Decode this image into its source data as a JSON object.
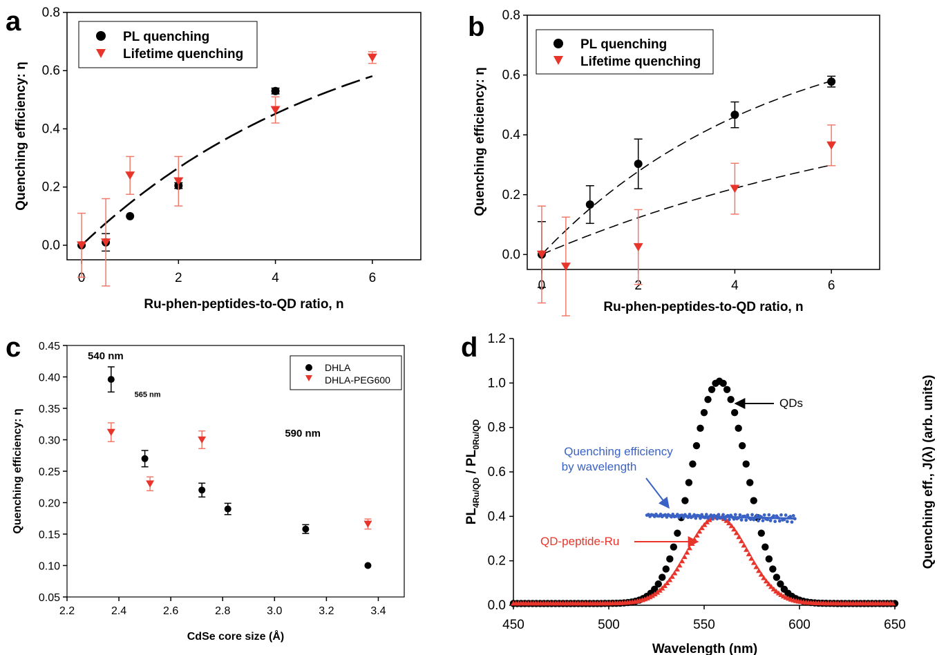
{
  "colors": {
    "black": "#000000",
    "red": "#e8352b",
    "errred": "#f07a6a",
    "blue": "#3a62c4"
  },
  "chart_data": [
    {
      "panel": "a",
      "type": "scatter",
      "xlabel": "Ru-phen-peptides-to-QD ratio, n",
      "ylabel": "Quenching efficiency: η",
      "xlim": [
        -0.3,
        7.0
      ],
      "ylim": [
        -0.05,
        0.8
      ],
      "xticks": [
        "0",
        "2",
        "4",
        "6"
      ],
      "yticks": [
        "0.0",
        "0.2",
        "0.4",
        "0.6",
        "0.8"
      ],
      "legend": [
        "PL quenching",
        "Lifetime quenching"
      ],
      "legend_position": "top-left",
      "series": [
        {
          "name": "PL quenching",
          "marker": "circle",
          "color": "#000000",
          "x": [
            0,
            0.5,
            1,
            2,
            4
          ],
          "y": [
            0.0,
            0.01,
            0.1,
            0.205,
            0.53
          ],
          "err": [
            0.0,
            0.03,
            0.0,
            0.01,
            0.01
          ]
        },
        {
          "name": "Lifetime quenching",
          "marker": "triangle-down",
          "color": "#e8352b",
          "x": [
            0,
            0.5,
            1,
            2,
            4,
            6
          ],
          "y": [
            0.0,
            0.01,
            0.24,
            0.22,
            0.465,
            0.645
          ],
          "err": [
            0.11,
            0.15,
            0.065,
            0.085,
            0.045,
            0.02
          ]
        }
      ],
      "fit": {
        "a": 0.88,
        "b": 0.18,
        "x0": 0,
        "x1": 6,
        "dash": "long"
      }
    },
    {
      "panel": "b",
      "type": "scatter",
      "xlabel": "Ru-phen-peptides-to-QD ratio, n",
      "ylabel": "Quenching efficiency: η",
      "xlim": [
        -0.3,
        7.0
      ],
      "ylim": [
        -0.05,
        0.8
      ],
      "xticks": [
        "0",
        "2",
        "4",
        "6"
      ],
      "yticks": [
        "0.0",
        "0.2",
        "0.4",
        "0.6",
        "0.8"
      ],
      "legend": [
        "PL quenching",
        "Lifetime quenching"
      ],
      "legend_position": "top-left",
      "series": [
        {
          "name": "PL quenching",
          "marker": "circle",
          "color": "#000000",
          "x": [
            0,
            1,
            2,
            4,
            6
          ],
          "y": [
            0.0,
            0.167,
            0.303,
            0.467,
            0.578
          ],
          "err": [
            0.11,
            0.063,
            0.083,
            0.043,
            0.018
          ]
        },
        {
          "name": "Lifetime quenching",
          "marker": "triangle-down",
          "color": "#e8352b",
          "x": [
            0,
            0.5,
            2,
            4,
            6
          ],
          "y": [
            0.0,
            -0.04,
            0.025,
            0.22,
            0.365
          ],
          "err": [
            0.162,
            0.165,
            0.125,
            0.085,
            0.068
          ]
        }
      ],
      "fits": [
        {
          "a": 0.81,
          "b": 0.21,
          "x0": 0,
          "x1": 6
        },
        {
          "a": 0.6,
          "b": 0.115,
          "x0": 0,
          "x1": 6
        }
      ]
    },
    {
      "panel": "c",
      "type": "scatter",
      "xlabel": "CdSe core size (Å)",
      "ylabel": "Quenching efficiency: η",
      "xlim": [
        2.2,
        3.5
      ],
      "ylim": [
        0.05,
        0.45
      ],
      "xticks": [
        "2.2",
        "2.4",
        "2.6",
        "2.8",
        "3.0",
        "3.2",
        "3.4"
      ],
      "yticks": [
        "0.05",
        "0.10",
        "0.15",
        "0.20",
        "0.25",
        "0.30",
        "0.35",
        "0.40",
        "0.45"
      ],
      "legend": [
        "DHLA",
        "DHLA-PEG600"
      ],
      "legend_position": "top-right",
      "annotations": [
        {
          "text": "540 nm",
          "x": 2.28,
          "y": 0.428,
          "size": 15
        },
        {
          "text": "565 nm",
          "x": 2.46,
          "y": 0.368,
          "size": 11
        },
        {
          "text": "590 nm",
          "x": 3.04,
          "y": 0.305,
          "size": 15
        }
      ],
      "series": [
        {
          "name": "DHLA",
          "marker": "circle",
          "color": "#000000",
          "x": [
            2.37,
            2.5,
            2.72,
            2.82,
            3.12,
            3.36
          ],
          "y": [
            0.396,
            0.27,
            0.22,
            0.19,
            0.158,
            0.1
          ],
          "err": [
            0.02,
            0.013,
            0.011,
            0.009,
            0.007,
            0.0
          ]
        },
        {
          "name": "DHLA-PEG600",
          "marker": "triangle-down",
          "color": "#e8352b",
          "x": [
            2.37,
            2.52,
            2.72,
            3.36
          ],
          "y": [
            0.312,
            0.23,
            0.3,
            0.166
          ],
          "err": [
            0.015,
            0.011,
            0.014,
            0.008
          ]
        }
      ]
    },
    {
      "panel": "d",
      "type": "line",
      "xlabel": "Wavelength (nm)",
      "ylabel": "PL4Ru/QD / PL0Ru/QD",
      "ylabel_right": "Quenching eff., J(λ) (arb. units)",
      "xlim": [
        450,
        650
      ],
      "ylim": [
        0,
        1.2
      ],
      "xticks": [
        "450",
        "500",
        "550",
        "600",
        "650"
      ],
      "yticks": [
        "0.0",
        "0.2",
        "0.4",
        "0.6",
        "0.8",
        "1.0",
        "1.2"
      ],
      "series": [
        {
          "name": "QDs",
          "color": "#000000",
          "marker": "circle",
          "peak": 558,
          "amplitude": 1.0,
          "sigma": 14.5,
          "x_range": [
            450,
            650
          ]
        },
        {
          "name": "QD-peptide-Ru",
          "color": "#e8352b",
          "marker": "triangle",
          "peak": 557,
          "amplitude": 0.39,
          "sigma": 15.5,
          "x_range": [
            450,
            650
          ]
        },
        {
          "name": "Quenching efficiency by wavelength",
          "color": "#3a62c4",
          "marker": "dot",
          "x_range": [
            520,
            598
          ],
          "y0": 0.405,
          "y1": 0.39
        }
      ],
      "annotations": [
        {
          "text": "QDs",
          "color": "#000000"
        },
        {
          "line1": "Quenching efficiency",
          "line2": "by wavelength",
          "color": "#3a62c4"
        },
        {
          "text": "QD-peptide-Ru",
          "color": "#e8352b"
        }
      ]
    }
  ]
}
